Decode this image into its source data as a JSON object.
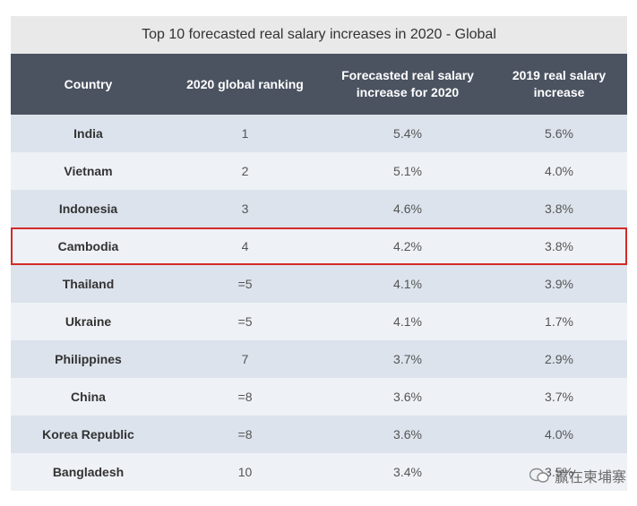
{
  "table": {
    "title": "Top 10 forecasted real salary increases in 2020 - Global",
    "header": [
      "Country",
      "2020 global ranking",
      "Forecasted real salary increase for 2020",
      "2019 real salary increase"
    ],
    "rows": [
      [
        "India",
        "1",
        "5.4%",
        "5.6%"
      ],
      [
        "Vietnam",
        "2",
        "5.1%",
        "4.0%"
      ],
      [
        "Indonesia",
        "3",
        "4.6%",
        "3.8%"
      ],
      [
        "Cambodia",
        "4",
        "4.2%",
        "3.8%"
      ],
      [
        "Thailand",
        "=5",
        "4.1%",
        "3.9%"
      ],
      [
        "Ukraine",
        "=5",
        "4.1%",
        "1.7%"
      ],
      [
        "Philippines",
        "7",
        "3.7%",
        "2.9%"
      ],
      [
        "China",
        "=8",
        "3.6%",
        "3.7%"
      ],
      [
        "Korea Republic",
        "=8",
        "3.6%",
        "4.0%"
      ],
      [
        "Bangladesh",
        "10",
        "3.4%",
        "3.5%"
      ]
    ],
    "highlighted_row": 3
  },
  "watermark": {
    "text": "赢在柬埔寨"
  }
}
